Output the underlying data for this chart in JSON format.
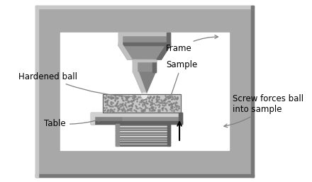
{
  "background_color": "#ffffff",
  "frame_fill": "#a8a8a8",
  "frame_light": "#c8c8c8",
  "frame_dark": "#787878",
  "inner_bg": "#ffffff",
  "head_mid": "#909090",
  "head_light": "#c0c0c0",
  "head_dark": "#686868",
  "sample_base": "#c0c0c0",
  "table_mid": "#909090",
  "table_light": "#d0d0d0",
  "table_dark": "#606060",
  "spring_light": "#d8d8d8",
  "spring_dark": "#707070",
  "labels": {
    "hardened_ball": "Hardened ball",
    "frame": "Frame",
    "sample": "Sample",
    "table": "Table",
    "screw": "Screw forces ball\ninto sample"
  },
  "label_fontsize": 8.5,
  "figsize": [
    4.4,
    2.57
  ],
  "dpi": 100
}
